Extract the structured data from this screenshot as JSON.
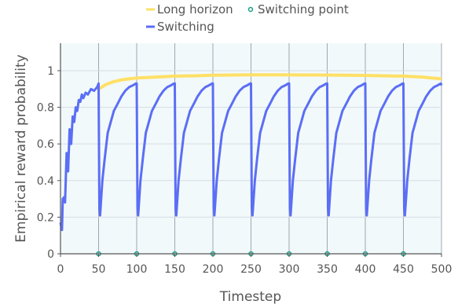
{
  "chart_data": {
    "type": "line",
    "title": "",
    "xlabel": "Timestep",
    "ylabel": "Empirical reward probability",
    "xlim": [
      0,
      500
    ],
    "ylim": [
      0,
      1.15
    ],
    "xticks": [
      0,
      50,
      100,
      150,
      200,
      250,
      300,
      350,
      400,
      450,
      500
    ],
    "yticks": [
      0,
      0.2,
      0.4,
      0.6,
      0.8,
      1
    ],
    "grid": true,
    "legend_position": "top-center",
    "series": [
      {
        "name": "Long horizon",
        "color": "#ffe066",
        "kind": "line",
        "x": [
          50,
          60,
          70,
          80,
          90,
          100,
          125,
          150,
          175,
          200,
          250,
          300,
          350,
          400,
          425,
          450,
          475,
          500
        ],
        "y": [
          0.9,
          0.925,
          0.94,
          0.95,
          0.955,
          0.96,
          0.965,
          0.97,
          0.972,
          0.975,
          0.977,
          0.977,
          0.976,
          0.974,
          0.972,
          0.97,
          0.965,
          0.955
        ]
      },
      {
        "name": "Switching",
        "color": "#5b6ef5",
        "kind": "line",
        "x": [
          0,
          2,
          3,
          5,
          6,
          8,
          10,
          12,
          14,
          16,
          18,
          20,
          22,
          24,
          26,
          28,
          30,
          33,
          36,
          40,
          44,
          48,
          50,
          51,
          52,
          55,
          58,
          62,
          66,
          70,
          75,
          80,
          85,
          90,
          95,
          99,
          100,
          101,
          102,
          105,
          108,
          112,
          116,
          120,
          125,
          130,
          135,
          140,
          145,
          149,
          150,
          151,
          152,
          155,
          158,
          162,
          166,
          170,
          175,
          180,
          185,
          190,
          195,
          199,
          200,
          201,
          202,
          205,
          208,
          212,
          216,
          220,
          225,
          230,
          235,
          240,
          245,
          249,
          250,
          251,
          252,
          255,
          258,
          262,
          266,
          270,
          275,
          280,
          285,
          290,
          295,
          299,
          300,
          301,
          302,
          305,
          308,
          312,
          316,
          320,
          325,
          330,
          335,
          340,
          345,
          349,
          350,
          351,
          352,
          355,
          358,
          362,
          366,
          370,
          375,
          380,
          385,
          390,
          395,
          399,
          400,
          401,
          402,
          405,
          408,
          412,
          416,
          420,
          425,
          430,
          435,
          440,
          445,
          449,
          450,
          451,
          452,
          455,
          458,
          462,
          466,
          470,
          475,
          480,
          485,
          490,
          495,
          499,
          500
        ],
        "y": [
          0.17,
          0.13,
          0.3,
          0.31,
          0.28,
          0.55,
          0.45,
          0.68,
          0.6,
          0.75,
          0.72,
          0.8,
          0.78,
          0.84,
          0.83,
          0.87,
          0.85,
          0.88,
          0.87,
          0.9,
          0.89,
          0.91,
          0.93,
          0.25,
          0.21,
          0.4,
          0.52,
          0.66,
          0.72,
          0.78,
          0.82,
          0.86,
          0.89,
          0.91,
          0.92,
          0.93,
          0.93,
          0.25,
          0.21,
          0.4,
          0.52,
          0.66,
          0.72,
          0.78,
          0.82,
          0.86,
          0.89,
          0.91,
          0.92,
          0.93,
          0.93,
          0.25,
          0.21,
          0.4,
          0.52,
          0.66,
          0.72,
          0.78,
          0.82,
          0.86,
          0.89,
          0.91,
          0.92,
          0.93,
          0.93,
          0.25,
          0.21,
          0.4,
          0.52,
          0.66,
          0.72,
          0.78,
          0.82,
          0.86,
          0.89,
          0.91,
          0.92,
          0.93,
          0.93,
          0.25,
          0.21,
          0.4,
          0.52,
          0.66,
          0.72,
          0.78,
          0.82,
          0.86,
          0.89,
          0.91,
          0.92,
          0.93,
          0.93,
          0.25,
          0.21,
          0.4,
          0.52,
          0.66,
          0.72,
          0.78,
          0.82,
          0.86,
          0.89,
          0.91,
          0.92,
          0.93,
          0.93,
          0.25,
          0.21,
          0.4,
          0.52,
          0.66,
          0.72,
          0.78,
          0.82,
          0.86,
          0.89,
          0.91,
          0.92,
          0.93,
          0.93,
          0.25,
          0.21,
          0.4,
          0.52,
          0.66,
          0.72,
          0.78,
          0.82,
          0.86,
          0.89,
          0.91,
          0.92,
          0.93,
          0.93,
          0.25,
          0.21,
          0.4,
          0.52,
          0.66,
          0.72,
          0.78,
          0.82,
          0.86,
          0.89,
          0.91,
          0.92,
          0.93,
          0.92
        ]
      },
      {
        "name": "Switching point",
        "color": "#1a9e86",
        "kind": "scatter",
        "x": [
          50,
          100,
          150,
          200,
          250,
          300,
          350,
          400,
          450
        ],
        "y": [
          0,
          0,
          0,
          0,
          0,
          0,
          0,
          0,
          0
        ]
      }
    ]
  }
}
